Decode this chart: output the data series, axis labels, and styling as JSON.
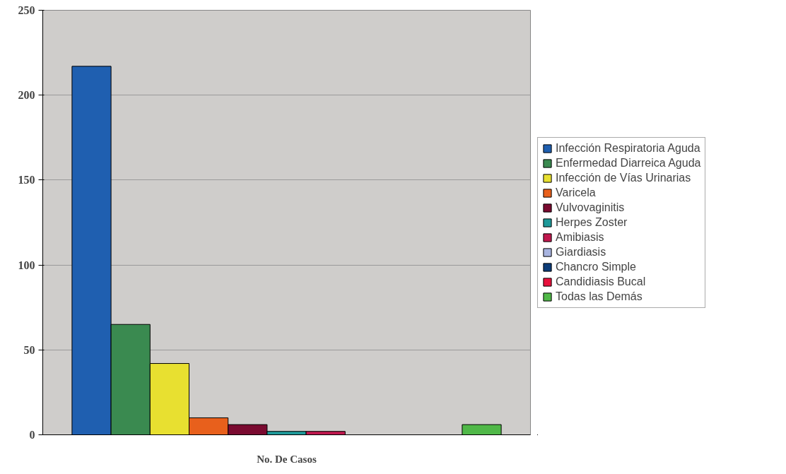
{
  "chart_data": {
    "type": "bar",
    "categories": [
      "No. De Casos"
    ],
    "series": [
      {
        "name": "Infección Respiratoria Aguda",
        "color": "#1f5fb0",
        "values": [
          217
        ]
      },
      {
        "name": "Enfermedad Diarreica Aguda",
        "color": "#3a8a50",
        "values": [
          65
        ]
      },
      {
        "name": "Infección de Vías Urinarias",
        "color": "#e8e030",
        "values": [
          42
        ]
      },
      {
        "name": "Varicela",
        "color": "#e8601c",
        "values": [
          10
        ]
      },
      {
        "name": "Vulvovaginitis",
        "color": "#7a0a30",
        "values": [
          6
        ]
      },
      {
        "name": "Herpes Zoster",
        "color": "#1e9a9a",
        "values": [
          2
        ]
      },
      {
        "name": "Amibiasis",
        "color": "#c0184e",
        "values": [
          2
        ]
      },
      {
        "name": "Giardiasis",
        "color": "#a8b4e0",
        "values": [
          0
        ]
      },
      {
        "name": "Chancro Simple",
        "color": "#0c3c78",
        "values": [
          0
        ]
      },
      {
        "name": "Candidiasis Bucal",
        "color": "#e8103c",
        "values": [
          0
        ]
      },
      {
        "name": "Todas las Demás",
        "color": "#50b848",
        "values": [
          6
        ]
      }
    ],
    "ylim": [
      0,
      250
    ],
    "yticks": [
      0,
      50,
      100,
      150,
      200,
      250
    ],
    "grid": "y",
    "legend": "right"
  }
}
